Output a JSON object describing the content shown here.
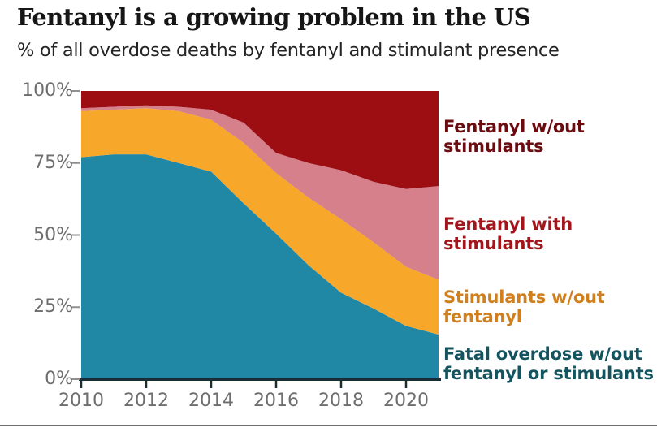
{
  "title": "Fentanyl is a growing problem in the US",
  "subtitle": "% of all overdose deaths by fentanyl and stimulant presence",
  "chart_data": {
    "type": "area",
    "stacked": true,
    "title": "Fentanyl is a growing problem in the US",
    "subtitle": "% of all overdose deaths by fentanyl and stimulant presence",
    "xlabel": "",
    "ylabel": "% of all overdose deaths",
    "x": [
      2010,
      2011,
      2012,
      2013,
      2014,
      2015,
      2016,
      2017,
      2018,
      2019,
      2020,
      2021
    ],
    "x_tick_labels": [
      "2010",
      "2012",
      "2014",
      "2016",
      "2018",
      "2020"
    ],
    "y_tick_labels": [
      "0%",
      "25%",
      "50%",
      "75%",
      "100%"
    ],
    "ylim": [
      0,
      100
    ],
    "grid": false,
    "legend_position": "right",
    "series": [
      {
        "id": "no-fentanyl-no-stimulants",
        "name": "Fatal overdose w/out fentanyl or stimulants",
        "color": "#2087A5",
        "values": [
          77,
          78,
          78,
          75,
          72,
          61,
          50.5,
          39.5,
          30,
          24.5,
          18.5,
          15.5
        ]
      },
      {
        "id": "stimulants-without-fentanyl",
        "name": "Stimulants w/out fentanyl",
        "color": "#F7A72A",
        "values": [
          16,
          15.5,
          16,
          18,
          18,
          21,
          21,
          23.5,
          25.5,
          23,
          20.5,
          19
        ]
      },
      {
        "id": "fentanyl-with-stimulants",
        "name": "Fentanyl with stimulants",
        "color": "#D5808B",
        "values": [
          1,
          1,
          1,
          1.5,
          3.5,
          7,
          7,
          12,
          17,
          21,
          27,
          32.5
        ]
      },
      {
        "id": "fentanyl-without-stimulants",
        "name": "Fentanyl w/out stimulants",
        "color": "#9D0E13",
        "values": [
          6,
          5.5,
          5,
          5.5,
          6.5,
          11,
          21.5,
          25,
          27.5,
          31.5,
          34,
          33
        ]
      }
    ]
  },
  "legend": {
    "items": [
      {
        "id": "fentanyl-without-stimulants",
        "line1": "Fentanyl w/out",
        "line2": "stimulants",
        "color": "#6B0C10"
      },
      {
        "id": "fentanyl-with-stimulants",
        "line1": "Fentanyl with",
        "line2": "stimulants",
        "color": "#A3151C"
      },
      {
        "id": "stimulants-without-fentanyl",
        "line1": "Stimulants w/out",
        "line2": "fentanyl",
        "color": "#D07F1E"
      },
      {
        "id": "no-fentanyl-no-stimulants",
        "line1": "Fatal overdose w/out",
        "line2": "fentanyl or stimulants",
        "color": "#14545E"
      }
    ]
  },
  "style_colors": {
    "axis_line": "#1A2E38",
    "y_tick_dash": "#8F8F8F",
    "tick_label": "#6E6E6E",
    "divider": "#6F6F6F",
    "background": "#FFFFFF"
  }
}
